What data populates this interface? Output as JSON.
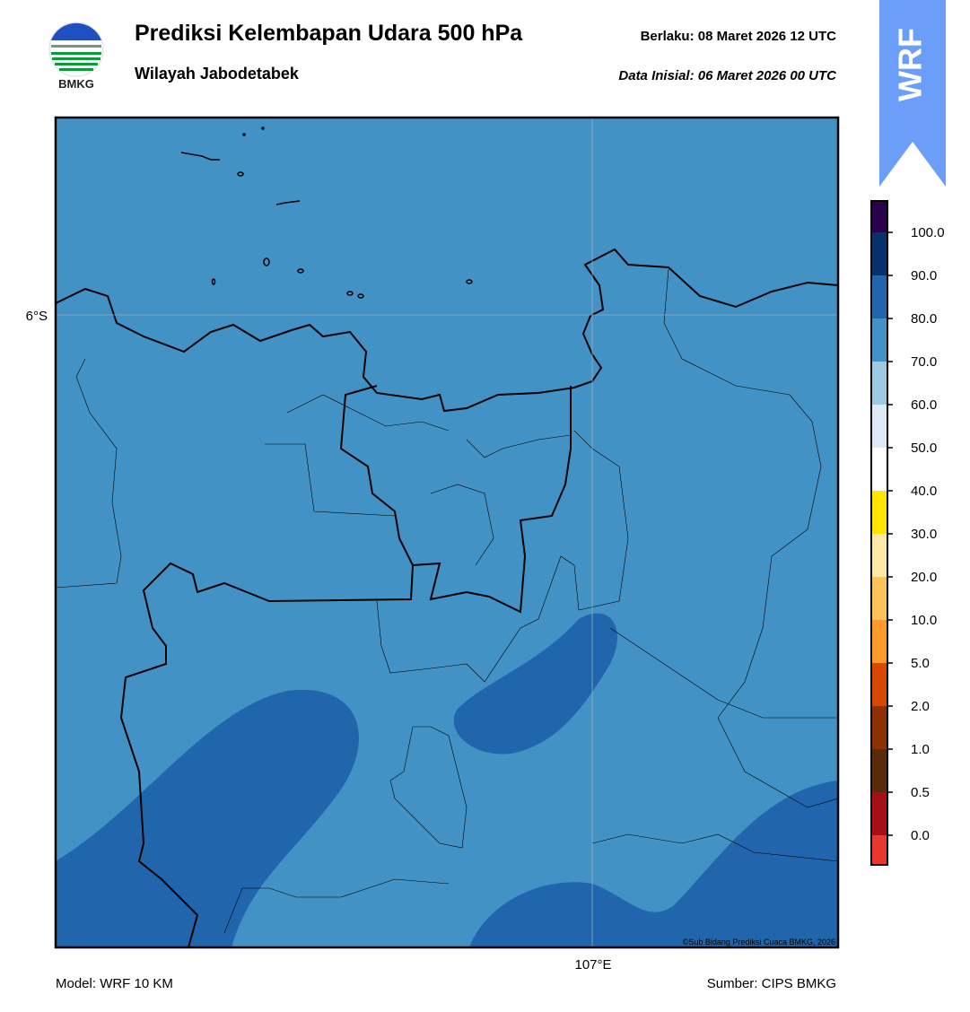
{
  "header": {
    "logo_text": "BMKG",
    "title": "Prediksi Kelembapan Udara 500 hPa",
    "subtitle": "Wilayah Jabodetabek",
    "valid_time": "Berlaku:  08 Maret 2026 12 UTC",
    "init_time": "Data Inisial:  06 Maret 2026 00 UTC",
    "model_badge": "WRF"
  },
  "map": {
    "lat_label": "6°S",
    "lon_label": "107°E",
    "copyright": "©Sub Bidang Prediksi Cuaca BMKG, 2026"
  },
  "colorbar": {
    "colors": [
      "#2d004b",
      "#08306b",
      "#2166ac",
      "#4292c6",
      "#9ecae1",
      "#deebf7",
      "#ffffff",
      "#ffe500",
      "#ffe9a8",
      "#fdc35a",
      "#fd9a2a",
      "#d94801",
      "#8c3104",
      "#5a2a0a",
      "#a50f15",
      "#e8372c"
    ],
    "ticks": [
      {
        "value": 100,
        "label": "100.0"
      },
      {
        "value": 90,
        "label": "90.0"
      },
      {
        "value": 80,
        "label": "80.0"
      },
      {
        "value": 70,
        "label": "70.0"
      },
      {
        "value": 60,
        "label": "60.0"
      },
      {
        "value": 50,
        "label": "50.0"
      },
      {
        "value": 40,
        "label": "40.0"
      },
      {
        "value": 30,
        "label": "30.0"
      },
      {
        "value": 20,
        "label": "20.0"
      },
      {
        "value": 10,
        "label": "10.0"
      },
      {
        "value": 5,
        "label": "5.0"
      },
      {
        "value": 2,
        "label": "2.0"
      },
      {
        "value": 1,
        "label": "1.0"
      },
      {
        "value": 0.5,
        "label": "0.5"
      },
      {
        "value": 0,
        "label": "0.0"
      }
    ]
  },
  "footer": {
    "model": "Model: WRF 10 KM",
    "source": "Sumber: CIPS BMKG"
  }
}
